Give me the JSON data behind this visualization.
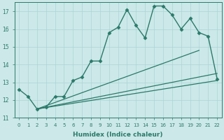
{
  "xlabel": "Humidex (Indice chaleur)",
  "ylabel": "",
  "xlim": [
    -0.5,
    22.5
  ],
  "ylim": [
    11,
    17.5
  ],
  "yticks": [
    11,
    12,
    13,
    14,
    15,
    16,
    17
  ],
  "xticks": [
    0,
    1,
    2,
    3,
    4,
    5,
    6,
    7,
    8,
    9,
    10,
    11,
    12,
    13,
    14,
    15,
    16,
    17,
    18,
    19,
    20,
    21,
    22
  ],
  "background_color": "#cce8e8",
  "grid_color": "#aad4d4",
  "line_color": "#2a7a6a",
  "lines": [
    {
      "x": [
        0,
        1,
        2,
        3,
        4,
        5,
        6,
        7,
        8,
        9,
        10,
        11,
        12,
        13,
        14,
        15,
        16,
        17,
        18,
        19,
        20,
        21,
        22
      ],
      "y": [
        12.6,
        12.2,
        11.5,
        11.6,
        12.2,
        12.2,
        13.1,
        13.3,
        14.2,
        14.2,
        15.8,
        16.1,
        17.1,
        16.2,
        15.5,
        17.3,
        17.3,
        16.8,
        16.0,
        16.6,
        15.8,
        15.6,
        13.2
      ],
      "marker": "D",
      "markersize": 2.5,
      "linewidth": 1.0,
      "smooth": false
    },
    {
      "x": [
        2,
        22
      ],
      "y": [
        11.5,
        15.0
      ],
      "marker": null,
      "markersize": 0,
      "linewidth": 1.0,
      "smooth": true,
      "end_y": 15.0
    },
    {
      "x": [
        2,
        22
      ],
      "y": [
        11.5,
        13.5
      ],
      "marker": null,
      "markersize": 0,
      "linewidth": 1.0,
      "smooth": true,
      "end_y": 13.5
    },
    {
      "x": [
        2,
        22
      ],
      "y": [
        11.5,
        13.1
      ],
      "marker": null,
      "markersize": 0,
      "linewidth": 1.0,
      "smooth": true,
      "end_y": 13.1
    }
  ],
  "fan_lines": [
    {
      "x_start": 2,
      "y_start": 11.5,
      "x_end": 20,
      "y_end": 14.8
    },
    {
      "x_start": 2,
      "y_start": 11.5,
      "x_end": 22,
      "y_end": 13.5
    },
    {
      "x_start": 2,
      "y_start": 11.5,
      "x_end": 22,
      "y_end": 13.1
    }
  ]
}
